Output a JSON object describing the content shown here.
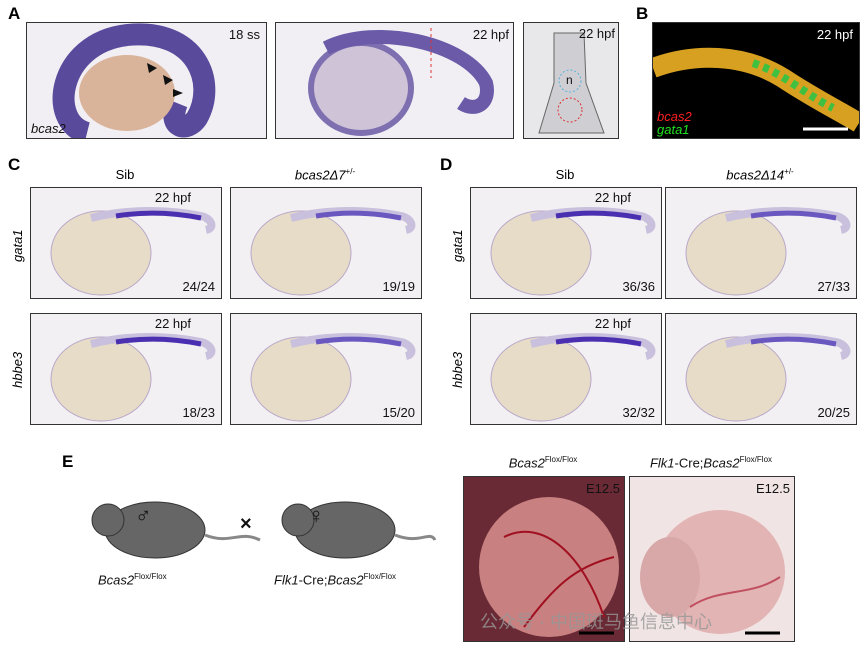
{
  "panel_a": {
    "label": "A",
    "images": [
      {
        "stage": "18 ss",
        "gene": "bcas2"
      },
      {
        "stage": "22 hpf"
      },
      {
        "stage": "22 hpf",
        "marker": "n"
      }
    ]
  },
  "panel_b": {
    "label": "B",
    "stage": "22 hpf",
    "channels": [
      "bcas2",
      "gata1"
    ]
  },
  "panel_c": {
    "label": "C",
    "columns": [
      {
        "base": "Sib"
      },
      {
        "base": "bcas2Δ7",
        "sup": "+/-"
      }
    ],
    "rows": [
      "gata1",
      "hbbe3"
    ],
    "stage": "22 hpf",
    "counts": [
      [
        "24/24",
        "19/19"
      ],
      [
        "18/23",
        "15/20"
      ]
    ]
  },
  "panel_d": {
    "label": "D",
    "columns": [
      {
        "base": "Sib"
      },
      {
        "base": "bcas2Δ14",
        "sup": "+/-"
      }
    ],
    "rows": [
      "gata1",
      "hbbe3"
    ],
    "stage": "22 hpf",
    "counts": [
      [
        "36/36",
        "27/33"
      ],
      [
        "32/32",
        "20/25"
      ]
    ]
  },
  "panel_e": {
    "label": "E",
    "cross": "×",
    "male": "♂",
    "female": "♀",
    "mice": [
      {
        "prefix": "",
        "base": "Bcas2",
        "sup": "Flox/Flox"
      },
      {
        "prefix": "Flk1",
        "mid": "-Cre;",
        "base": "Bcas2",
        "sup": "Flox/Flox"
      }
    ],
    "photos": [
      {
        "prefix": "",
        "base": "Bcas2",
        "sup": "Flox/Flox",
        "stage": "E12.5"
      },
      {
        "prefix": "Flk1",
        "mid": "-Cre;",
        "base": "Bcas2",
        "sup": "Flox/Flox",
        "stage": "E12.5"
      }
    ]
  },
  "watermark": "公众号 · 中国斑马鱼信息中心"
}
